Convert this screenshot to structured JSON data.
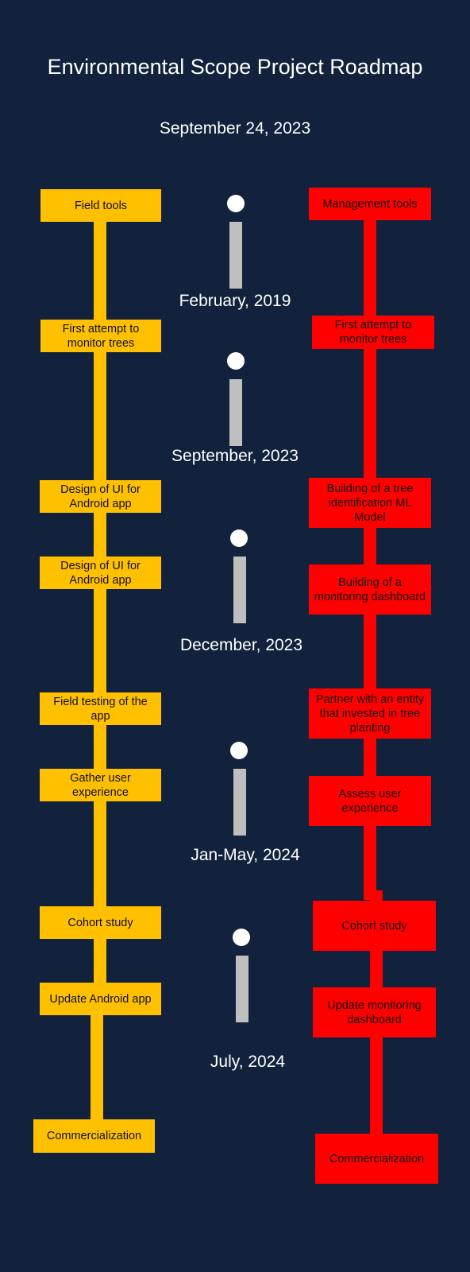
{
  "header": {
    "title": "Environmental Scope Project Roadmap",
    "date": "September 24, 2023"
  },
  "colors": {
    "background": "#12223d",
    "field_track": "#ffc000",
    "management_track": "#ff0000",
    "marker": "#bfbfbf"
  },
  "field_track": [
    "Field tools",
    "First attempt to monitor trees",
    "Design of UI for Android app",
    "Design of UI for Android app",
    "Field testing of the app",
    "Gather user experience",
    "Cohort study",
    "Update Android app",
    "Commercialization"
  ],
  "management_track": [
    "Management tools",
    "First attempt to monitor trees",
    "Building of a tree identification ML Model",
    "Building of a monitoring dashboard",
    "Partner with an entity that invested in tree planting",
    "Assess user experience",
    "Cohort study",
    "Update monitoring dashboard",
    "Commercialization"
  ],
  "milestones": [
    "February, 2019",
    "September, 2023",
    "December, 2023",
    "Jan-May, 2024",
    "July, 2024"
  ]
}
